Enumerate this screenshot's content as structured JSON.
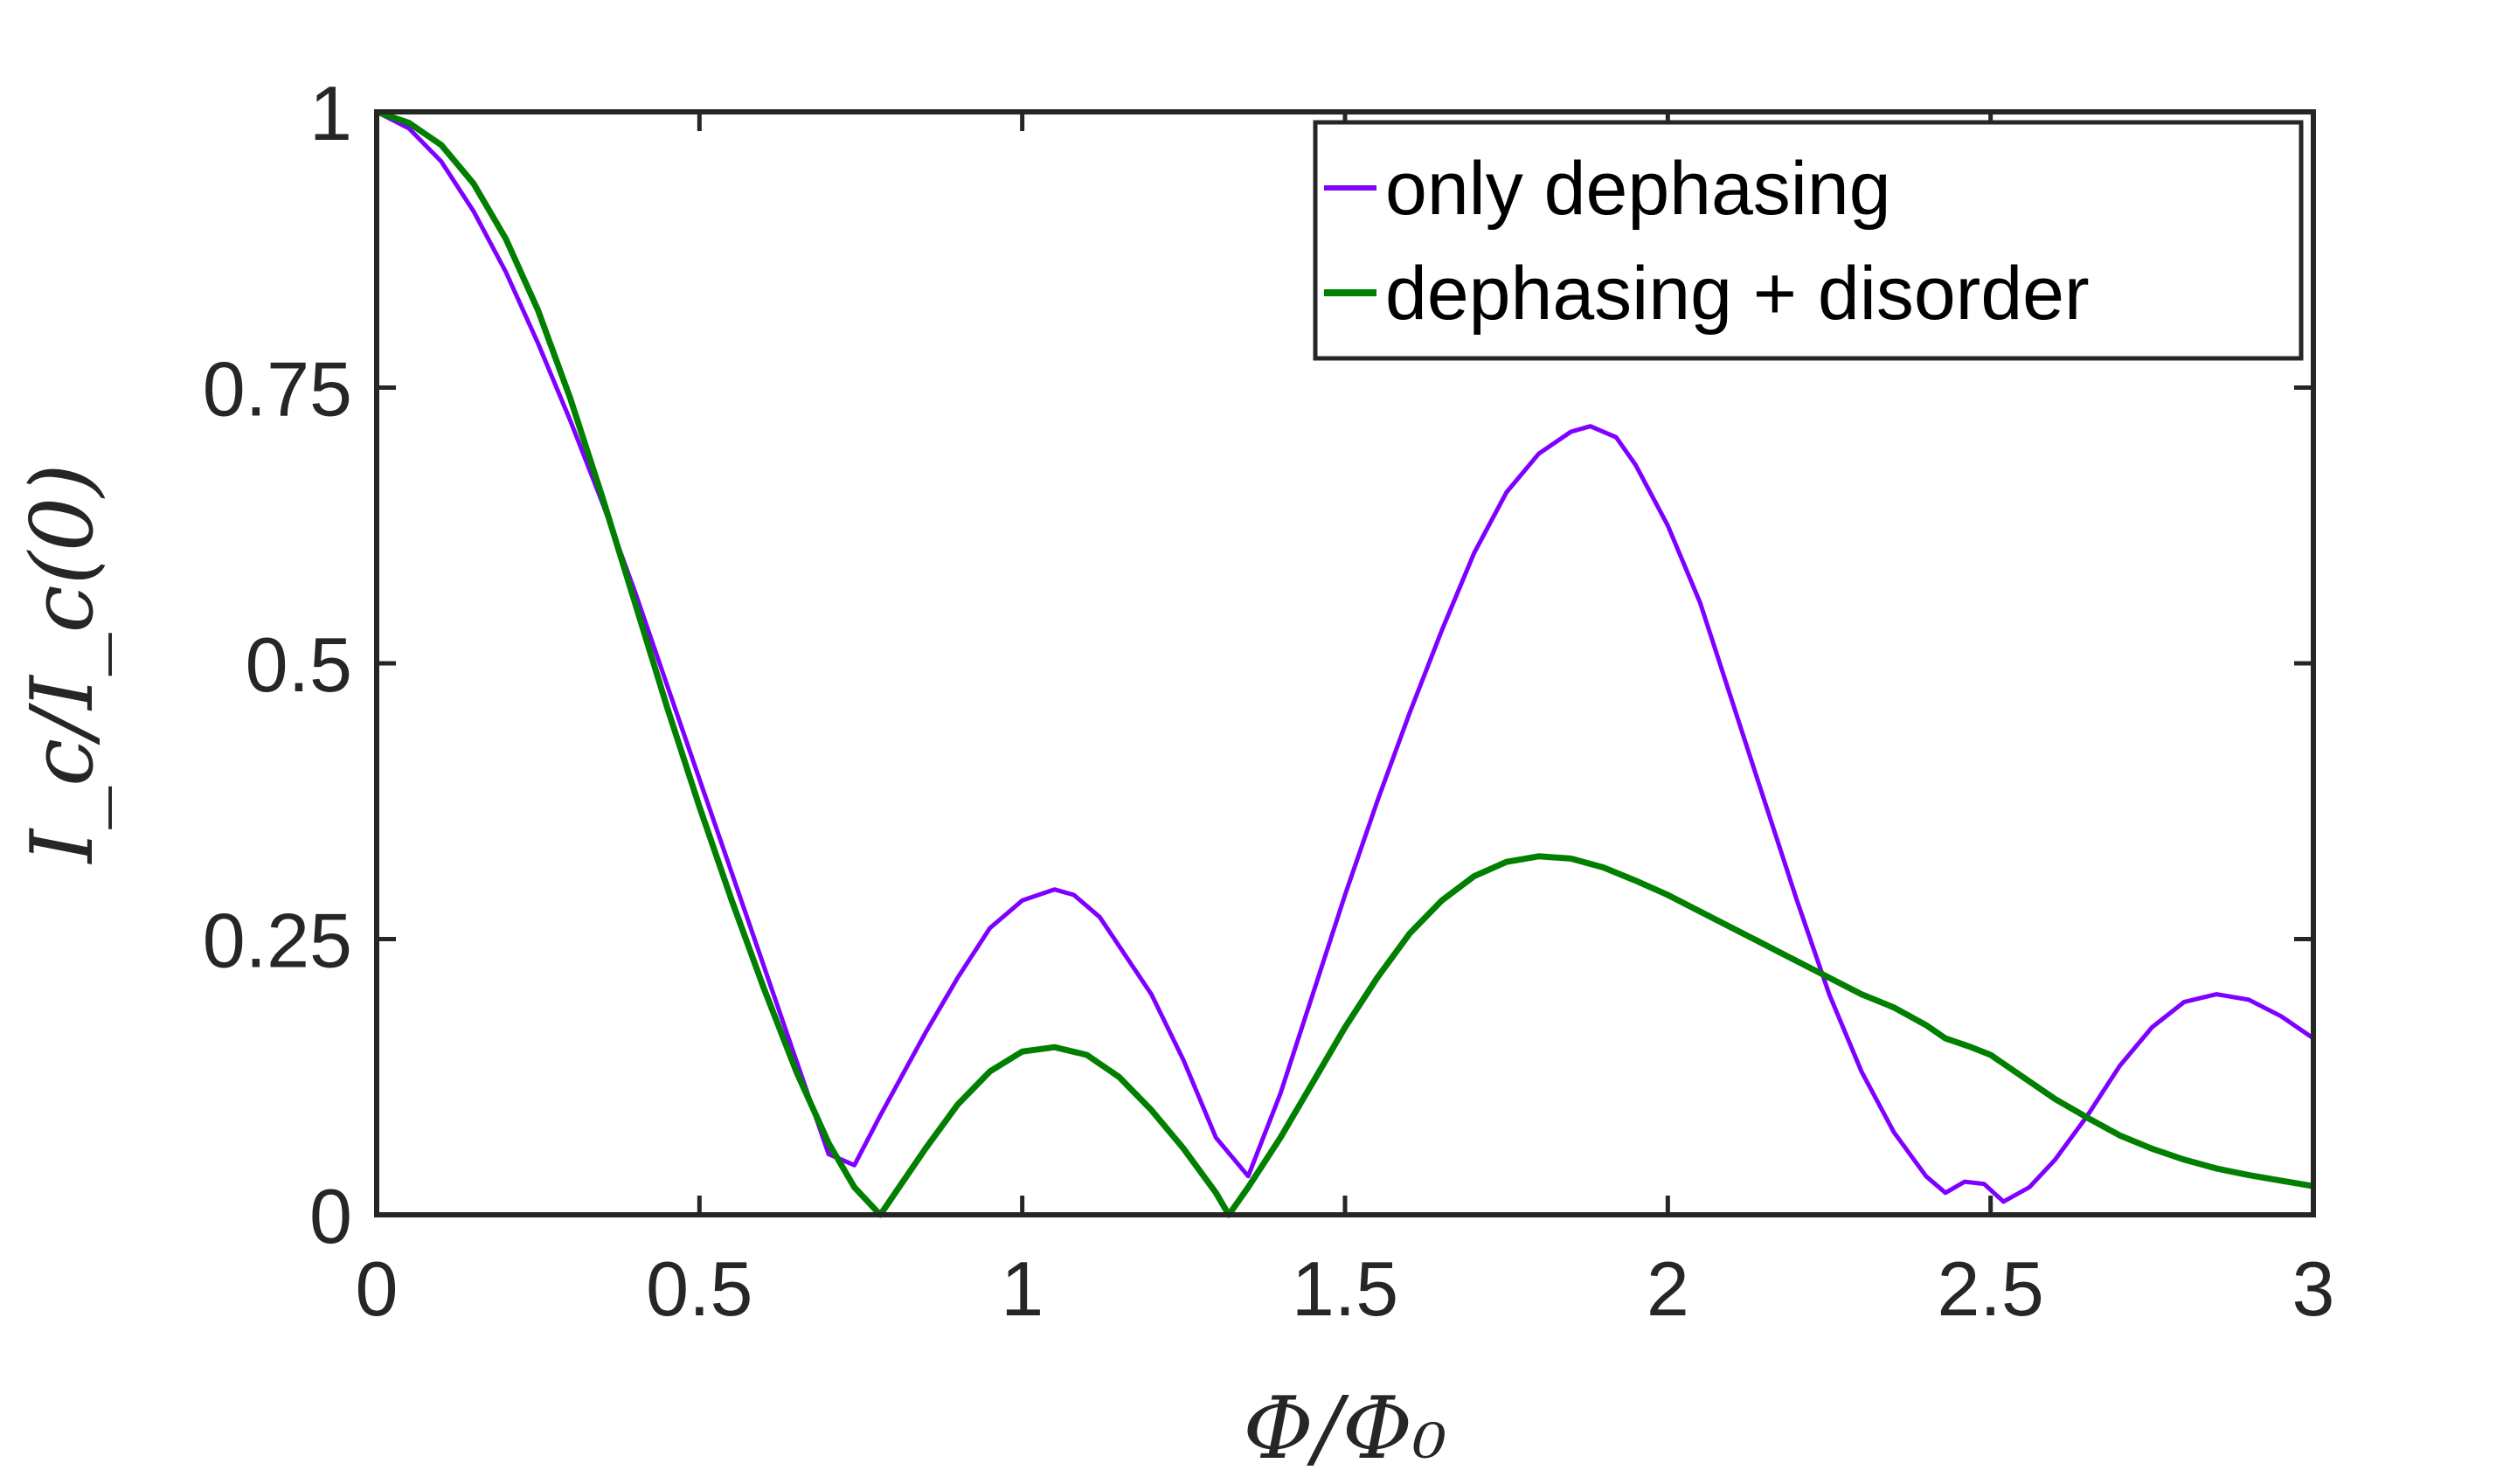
{
  "chart_data": {
    "type": "line",
    "title": "",
    "xlabel": "Φ/Φ₀",
    "ylabel": "I_c/I_c(0)",
    "xlim": [
      0,
      3
    ],
    "ylim": [
      0,
      1
    ],
    "x_ticks": [
      "0",
      "0.5",
      "1",
      "1.5",
      "2",
      "2.5",
      "3"
    ],
    "y_ticks": [
      "0",
      "0.25",
      "0.5",
      "0.75",
      "1"
    ],
    "grid": false,
    "legend_position": "top-right",
    "series": [
      {
        "name": "only dephasing",
        "color": "#7f00ff",
        "points": [
          [
            0,
            1.0
          ],
          [
            0.05,
            0.985
          ],
          [
            0.1,
            0.955
          ],
          [
            0.15,
            0.91
          ],
          [
            0.2,
            0.855
          ],
          [
            0.25,
            0.79
          ],
          [
            0.3,
            0.72
          ],
          [
            0.35,
            0.645
          ],
          [
            0.4,
            0.565
          ],
          [
            0.45,
            0.48
          ],
          [
            0.5,
            0.395
          ],
          [
            0.55,
            0.31
          ],
          [
            0.6,
            0.225
          ],
          [
            0.65,
            0.14
          ],
          [
            0.7,
            0.055
          ],
          [
            0.74,
            0.045
          ],
          [
            0.78,
            0.09
          ],
          [
            0.85,
            0.165
          ],
          [
            0.9,
            0.215
          ],
          [
            0.95,
            0.26
          ],
          [
            1.0,
            0.285
          ],
          [
            1.05,
            0.295
          ],
          [
            1.08,
            0.29
          ],
          [
            1.12,
            0.27
          ],
          [
            1.2,
            0.2
          ],
          [
            1.25,
            0.14
          ],
          [
            1.3,
            0.07
          ],
          [
            1.35,
            0.035
          ],
          [
            1.4,
            0.11
          ],
          [
            1.45,
            0.2
          ],
          [
            1.5,
            0.29
          ],
          [
            1.55,
            0.375
          ],
          [
            1.6,
            0.455
          ],
          [
            1.65,
            0.53
          ],
          [
            1.7,
            0.6
          ],
          [
            1.75,
            0.655
          ],
          [
            1.8,
            0.69
          ],
          [
            1.85,
            0.71
          ],
          [
            1.88,
            0.715
          ],
          [
            1.92,
            0.705
          ],
          [
            1.95,
            0.68
          ],
          [
            2.0,
            0.625
          ],
          [
            2.05,
            0.555
          ],
          [
            2.1,
            0.465
          ],
          [
            2.15,
            0.375
          ],
          [
            2.2,
            0.285
          ],
          [
            2.25,
            0.2
          ],
          [
            2.3,
            0.13
          ],
          [
            2.35,
            0.075
          ],
          [
            2.4,
            0.035
          ],
          [
            2.43,
            0.02
          ],
          [
            2.46,
            0.03
          ],
          [
            2.49,
            0.028
          ],
          [
            2.52,
            0.012
          ],
          [
            2.56,
            0.025
          ],
          [
            2.6,
            0.05
          ],
          [
            2.65,
            0.09
          ],
          [
            2.7,
            0.135
          ],
          [
            2.75,
            0.17
          ],
          [
            2.8,
            0.193
          ],
          [
            2.85,
            0.2
          ],
          [
            2.9,
            0.195
          ],
          [
            2.95,
            0.18
          ],
          [
            3.0,
            0.16
          ]
        ]
      },
      {
        "name": "dephasing + disorder",
        "color": "#007f00",
        "points": [
          [
            0,
            1.0
          ],
          [
            0.05,
            0.99
          ],
          [
            0.1,
            0.97
          ],
          [
            0.15,
            0.935
          ],
          [
            0.2,
            0.885
          ],
          [
            0.25,
            0.82
          ],
          [
            0.3,
            0.74
          ],
          [
            0.35,
            0.65
          ],
          [
            0.4,
            0.555
          ],
          [
            0.45,
            0.46
          ],
          [
            0.5,
            0.37
          ],
          [
            0.55,
            0.285
          ],
          [
            0.6,
            0.205
          ],
          [
            0.65,
            0.13
          ],
          [
            0.7,
            0.065
          ],
          [
            0.74,
            0.025
          ],
          [
            0.78,
            0.0
          ],
          [
            0.85,
            0.06
          ],
          [
            0.9,
            0.1
          ],
          [
            0.95,
            0.13
          ],
          [
            1.0,
            0.148
          ],
          [
            1.05,
            0.152
          ],
          [
            1.1,
            0.145
          ],
          [
            1.15,
            0.125
          ],
          [
            1.2,
            0.095
          ],
          [
            1.25,
            0.06
          ],
          [
            1.3,
            0.02
          ],
          [
            1.32,
            0.0
          ],
          [
            1.35,
            0.025
          ],
          [
            1.4,
            0.07
          ],
          [
            1.45,
            0.12
          ],
          [
            1.5,
            0.17
          ],
          [
            1.55,
            0.215
          ],
          [
            1.6,
            0.255
          ],
          [
            1.65,
            0.285
          ],
          [
            1.7,
            0.307
          ],
          [
            1.75,
            0.32
          ],
          [
            1.8,
            0.325
          ],
          [
            1.85,
            0.323
          ],
          [
            1.9,
            0.315
          ],
          [
            1.95,
            0.303
          ],
          [
            2.0,
            0.29
          ],
          [
            2.05,
            0.275
          ],
          [
            2.1,
            0.26
          ],
          [
            2.15,
            0.245
          ],
          [
            2.2,
            0.23
          ],
          [
            2.25,
            0.215
          ],
          [
            2.3,
            0.2
          ],
          [
            2.35,
            0.188
          ],
          [
            2.4,
            0.172
          ],
          [
            2.43,
            0.16
          ],
          [
            2.47,
            0.152
          ],
          [
            2.5,
            0.145
          ],
          [
            2.55,
            0.125
          ],
          [
            2.6,
            0.105
          ],
          [
            2.65,
            0.088
          ],
          [
            2.7,
            0.072
          ],
          [
            2.75,
            0.06
          ],
          [
            2.8,
            0.05
          ],
          [
            2.85,
            0.042
          ],
          [
            2.9,
            0.036
          ],
          [
            2.95,
            0.031
          ],
          [
            3.0,
            0.026
          ]
        ]
      }
    ]
  }
}
